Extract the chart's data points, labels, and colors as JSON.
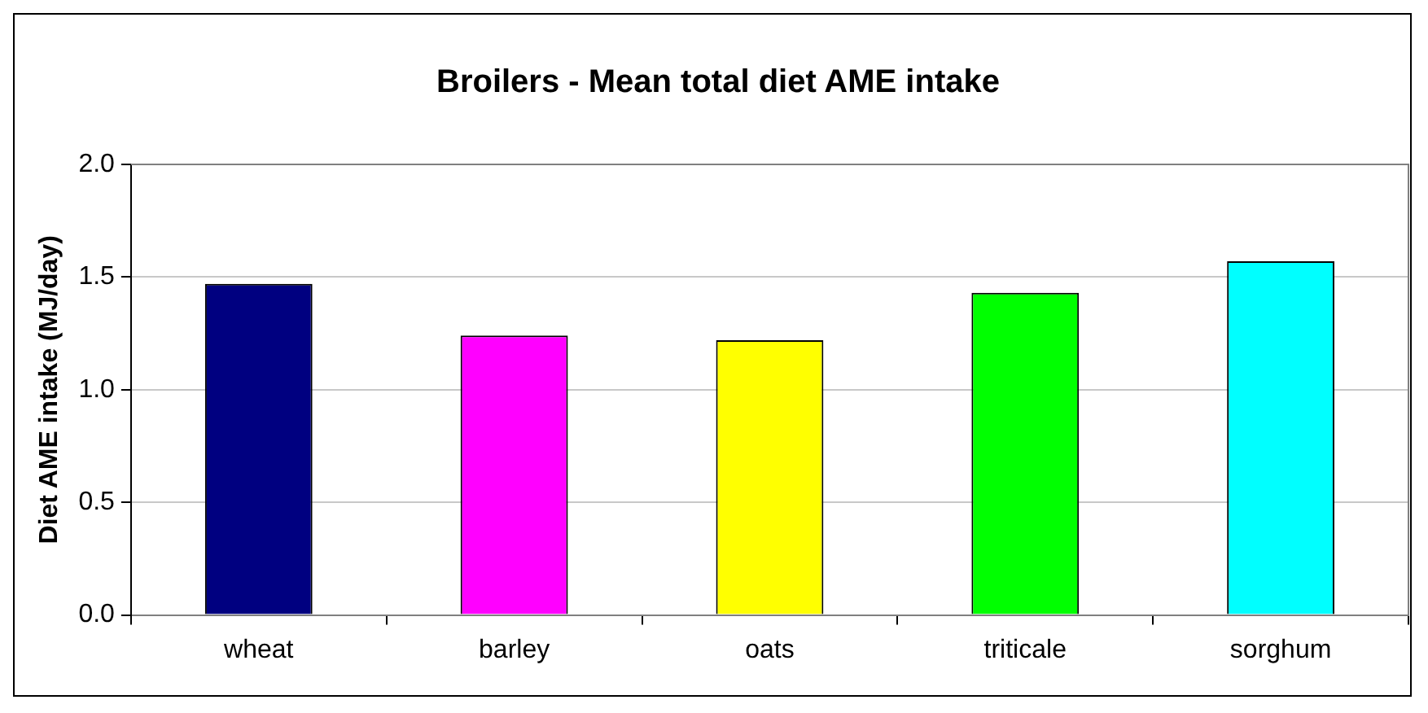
{
  "chart_data": {
    "type": "bar",
    "title": "Broilers - Mean total diet AME intake",
    "ylabel": "Diet AME intake (MJ/day)",
    "categories": [
      "wheat",
      "barley",
      "oats",
      "triticale",
      "sorghum"
    ],
    "values": [
      1.47,
      1.24,
      1.22,
      1.43,
      1.57
    ],
    "colors": [
      "#000080",
      "#ff00ff",
      "#ffff00",
      "#00ff00",
      "#00ffff"
    ],
    "ylim": [
      0,
      2
    ],
    "yticks": [
      {
        "value": 0,
        "label": "0.0"
      },
      {
        "value": 0.5,
        "label": "0.5"
      },
      {
        "value": 1,
        "label": "1.0"
      },
      {
        "value": 1.5,
        "label": "1.5"
      },
      {
        "value": 2,
        "label": "2.0"
      }
    ],
    "grid": "y",
    "legend": false
  }
}
